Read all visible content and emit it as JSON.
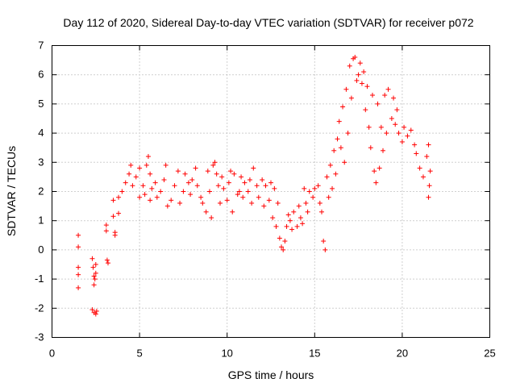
{
  "chart_data": {
    "type": "scatter",
    "title": "Day 112 of 2020, Sidereal Day-to-day VTEC variation (SDTVAR) for receiver p072",
    "xlabel": "GPS time / hours",
    "ylabel": "SDTVAR / TECUs",
    "xlim": [
      0,
      25
    ],
    "ylim": [
      -3,
      7
    ],
    "xticks": [
      0,
      5,
      10,
      15,
      20,
      25
    ],
    "yticks": [
      -3,
      -2,
      -1,
      0,
      1,
      2,
      3,
      4,
      5,
      6,
      7
    ],
    "grid": true,
    "marker": "+",
    "series": [
      {
        "name": "SDTVAR",
        "color": "#ff0000",
        "points": [
          [
            1.5,
            0.5
          ],
          [
            1.5,
            0.1
          ],
          [
            1.5,
            -0.6
          ],
          [
            1.5,
            -0.85
          ],
          [
            1.5,
            -1.3
          ],
          [
            2.3,
            -0.3
          ],
          [
            2.35,
            -0.6
          ],
          [
            2.4,
            -0.9
          ],
          [
            2.4,
            -1.2
          ],
          [
            2.45,
            -1.0
          ],
          [
            2.5,
            -0.5
          ],
          [
            2.5,
            -0.8
          ],
          [
            2.3,
            -2.05
          ],
          [
            2.4,
            -2.15
          ],
          [
            2.5,
            -2.2
          ],
          [
            2.55,
            -2.1
          ],
          [
            3.1,
            0.85
          ],
          [
            3.1,
            0.65
          ],
          [
            3.15,
            -0.35
          ],
          [
            3.2,
            -0.45
          ],
          [
            3.6,
            0.6
          ],
          [
            3.6,
            0.5
          ],
          [
            3.5,
            1.15
          ],
          [
            3.5,
            1.7
          ],
          [
            3.8,
            1.25
          ],
          [
            3.8,
            1.8
          ],
          [
            4.0,
            2.0
          ],
          [
            4.2,
            2.3
          ],
          [
            4.4,
            2.6
          ],
          [
            4.5,
            2.9
          ],
          [
            4.6,
            2.2
          ],
          [
            4.8,
            2.5
          ],
          [
            5.0,
            2.8
          ],
          [
            5.2,
            2.2
          ],
          [
            5.4,
            2.9
          ],
          [
            5.5,
            3.2
          ],
          [
            5.6,
            2.6
          ],
          [
            5.7,
            2.1
          ],
          [
            5.0,
            1.8
          ],
          [
            5.3,
            1.9
          ],
          [
            5.6,
            1.7
          ],
          [
            5.9,
            2.3
          ],
          [
            6.0,
            1.8
          ],
          [
            6.2,
            2.0
          ],
          [
            6.4,
            2.4
          ],
          [
            6.5,
            2.9
          ],
          [
            6.6,
            1.5
          ],
          [
            6.8,
            1.7
          ],
          [
            7.0,
            2.2
          ],
          [
            7.2,
            2.7
          ],
          [
            7.3,
            1.6
          ],
          [
            7.5,
            2.0
          ],
          [
            7.6,
            2.6
          ],
          [
            7.8,
            2.3
          ],
          [
            7.9,
            1.9
          ],
          [
            8.0,
            2.4
          ],
          [
            8.2,
            2.8
          ],
          [
            8.3,
            2.2
          ],
          [
            8.5,
            1.8
          ],
          [
            8.6,
            1.6
          ],
          [
            8.8,
            1.3
          ],
          [
            8.9,
            2.7
          ],
          [
            9.0,
            2.0
          ],
          [
            9.1,
            1.1
          ],
          [
            9.2,
            2.9
          ],
          [
            9.3,
            3.0
          ],
          [
            9.4,
            2.6
          ],
          [
            9.5,
            2.2
          ],
          [
            9.6,
            1.6
          ],
          [
            9.7,
            2.5
          ],
          [
            9.8,
            2.1
          ],
          [
            10.0,
            1.7
          ],
          [
            10.1,
            2.3
          ],
          [
            10.2,
            2.7
          ],
          [
            10.3,
            1.3
          ],
          [
            10.4,
            2.6
          ],
          [
            10.6,
            1.9
          ],
          [
            10.7,
            2.0
          ],
          [
            10.8,
            2.5
          ],
          [
            10.9,
            1.8
          ],
          [
            11.0,
            2.3
          ],
          [
            11.2,
            2.0
          ],
          [
            11.3,
            2.4
          ],
          [
            11.4,
            1.6
          ],
          [
            11.5,
            2.8
          ],
          [
            11.7,
            2.2
          ],
          [
            11.8,
            1.8
          ],
          [
            12.0,
            2.4
          ],
          [
            12.1,
            1.5
          ],
          [
            12.2,
            2.2
          ],
          [
            12.4,
            1.7
          ],
          [
            12.5,
            2.3
          ],
          [
            12.6,
            1.1
          ],
          [
            12.7,
            2.1
          ],
          [
            12.8,
            0.8
          ],
          [
            12.9,
            1.6
          ],
          [
            13.0,
            0.4
          ],
          [
            13.1,
            0.1
          ],
          [
            13.2,
            0.0
          ],
          [
            13.3,
            0.3
          ],
          [
            13.4,
            0.8
          ],
          [
            13.5,
            1.2
          ],
          [
            13.6,
            1.0
          ],
          [
            13.7,
            0.7
          ],
          [
            13.8,
            1.3
          ],
          [
            14.0,
            0.8
          ],
          [
            14.1,
            1.5
          ],
          [
            14.2,
            1.1
          ],
          [
            14.3,
            0.9
          ],
          [
            14.4,
            2.1
          ],
          [
            14.5,
            1.6
          ],
          [
            14.6,
            1.3
          ],
          [
            14.7,
            2.0
          ],
          [
            14.9,
            1.8
          ],
          [
            15.0,
            2.1
          ],
          [
            15.2,
            2.2
          ],
          [
            15.3,
            1.6
          ],
          [
            15.4,
            1.3
          ],
          [
            15.5,
            0.3
          ],
          [
            15.6,
            0.0
          ],
          [
            15.7,
            2.5
          ],
          [
            15.8,
            1.8
          ],
          [
            15.9,
            2.9
          ],
          [
            16.0,
            2.1
          ],
          [
            16.1,
            3.4
          ],
          [
            16.2,
            2.6
          ],
          [
            16.3,
            3.8
          ],
          [
            16.4,
            4.4
          ],
          [
            16.5,
            3.5
          ],
          [
            16.6,
            4.9
          ],
          [
            16.7,
            3.0
          ],
          [
            16.8,
            5.5
          ],
          [
            16.9,
            4.0
          ],
          [
            17.0,
            6.3
          ],
          [
            17.1,
            5.2
          ],
          [
            17.2,
            6.55
          ],
          [
            17.3,
            6.6
          ],
          [
            17.4,
            5.8
          ],
          [
            17.5,
            6.0
          ],
          [
            17.6,
            6.4
          ],
          [
            17.7,
            5.7
          ],
          [
            17.8,
            6.1
          ],
          [
            17.9,
            4.8
          ],
          [
            18.0,
            5.6
          ],
          [
            18.1,
            4.2
          ],
          [
            18.2,
            3.5
          ],
          [
            18.3,
            5.3
          ],
          [
            18.4,
            2.7
          ],
          [
            18.5,
            2.3
          ],
          [
            18.6,
            5.0
          ],
          [
            18.7,
            2.8
          ],
          [
            18.8,
            4.2
          ],
          [
            18.9,
            3.4
          ],
          [
            19.0,
            5.3
          ],
          [
            19.1,
            4.0
          ],
          [
            19.2,
            5.5
          ],
          [
            19.4,
            4.5
          ],
          [
            19.5,
            5.2
          ],
          [
            19.6,
            4.3
          ],
          [
            19.7,
            4.8
          ],
          [
            19.8,
            4.0
          ],
          [
            20.0,
            3.7
          ],
          [
            20.1,
            4.2
          ],
          [
            20.3,
            3.9
          ],
          [
            20.5,
            4.1
          ],
          [
            20.7,
            3.6
          ],
          [
            20.8,
            3.3
          ],
          [
            21.0,
            2.8
          ],
          [
            21.2,
            2.5
          ],
          [
            21.4,
            3.2
          ],
          [
            21.5,
            3.6
          ],
          [
            21.5,
            1.8
          ],
          [
            21.55,
            2.2
          ],
          [
            21.6,
            2.7
          ]
        ]
      }
    ]
  }
}
